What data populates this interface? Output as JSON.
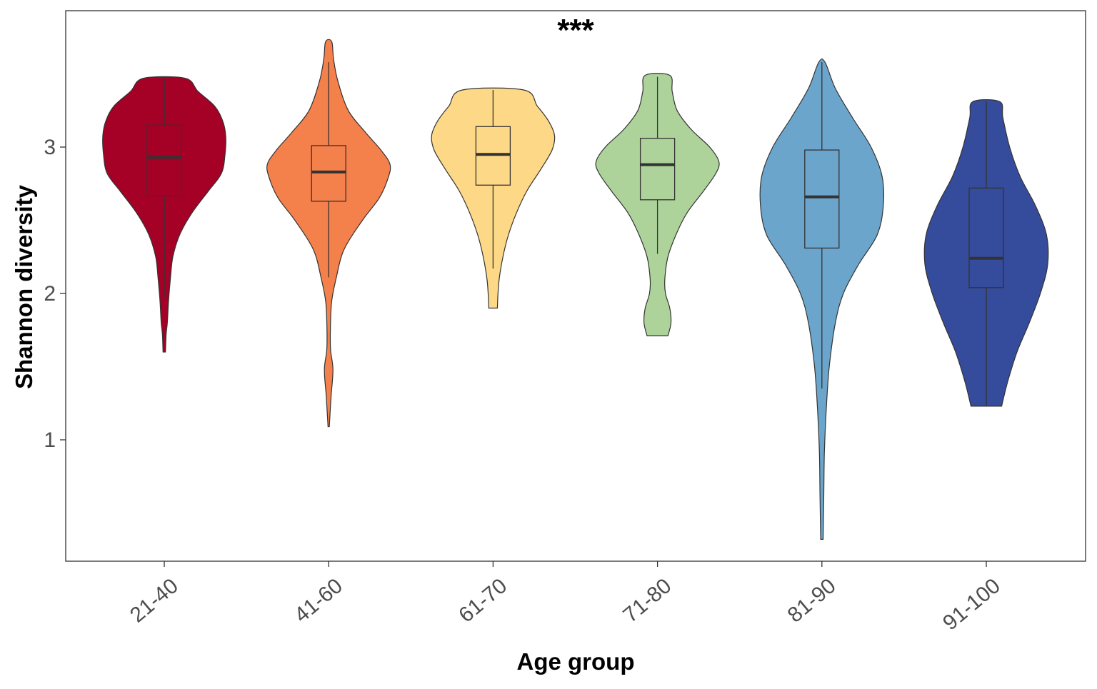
{
  "chart_data": {
    "type": "violin",
    "title": "",
    "xlabel": "Age group",
    "ylabel": "Shannon diversity",
    "annotation": "***",
    "ylim": [
      0.15,
      3.9
    ],
    "yticks": [
      1,
      2,
      3
    ],
    "ytick_labels": [
      "1",
      "2",
      "3"
    ],
    "categories": [
      "21-40",
      "41-60",
      "61-70",
      "71-80",
      "81-90",
      "91-100"
    ],
    "colors": [
      "#A50026",
      "#F4804C",
      "#FDD886",
      "#ADD39B",
      "#6BA5CC",
      "#354B9B"
    ],
    "grid": false,
    "legend": "none",
    "series": [
      {
        "category": "21-40",
        "box": {
          "lower_whisker": 1.97,
          "q1": 2.67,
          "median": 2.93,
          "q3": 3.15,
          "upper_whisker": 3.47
        },
        "violin_min": 1.6,
        "violin_max": 3.47,
        "density": [
          [
            1.6,
            0.02
          ],
          [
            1.72,
            0.03
          ],
          [
            1.8,
            0.05
          ],
          [
            1.95,
            0.07
          ],
          [
            2.1,
            0.1
          ],
          [
            2.25,
            0.14
          ],
          [
            2.4,
            0.25
          ],
          [
            2.55,
            0.45
          ],
          [
            2.7,
            0.72
          ],
          [
            2.82,
            0.93
          ],
          [
            2.95,
            0.99
          ],
          [
            3.08,
            1.0
          ],
          [
            3.18,
            0.95
          ],
          [
            3.28,
            0.82
          ],
          [
            3.38,
            0.55
          ],
          [
            3.47,
            0.34
          ]
        ]
      },
      {
        "category": "41-60",
        "box": {
          "lower_whisker": 2.11,
          "q1": 2.63,
          "median": 2.83,
          "q3": 3.01,
          "upper_whisker": 3.58
        },
        "violin_min": 1.09,
        "violin_max": 3.72,
        "density": [
          [
            1.09,
            0.01
          ],
          [
            1.3,
            0.04
          ],
          [
            1.48,
            0.07
          ],
          [
            1.62,
            0.03
          ],
          [
            1.8,
            0.03
          ],
          [
            1.95,
            0.05
          ],
          [
            2.1,
            0.12
          ],
          [
            2.3,
            0.25
          ],
          [
            2.5,
            0.55
          ],
          [
            2.65,
            0.82
          ],
          [
            2.78,
            0.96
          ],
          [
            2.88,
            1.0
          ],
          [
            2.98,
            0.85
          ],
          [
            3.1,
            0.6
          ],
          [
            3.25,
            0.32
          ],
          [
            3.45,
            0.15
          ],
          [
            3.6,
            0.08
          ],
          [
            3.72,
            0.05
          ]
        ]
      },
      {
        "category": "61-70",
        "box": {
          "lower_whisker": 2.17,
          "q1": 2.74,
          "median": 2.95,
          "q3": 3.14,
          "upper_whisker": 3.39
        },
        "violin_min": 1.9,
        "violin_max": 3.39,
        "density": [
          [
            1.9,
            0.07
          ],
          [
            2.0,
            0.08
          ],
          [
            2.1,
            0.1
          ],
          [
            2.25,
            0.16
          ],
          [
            2.4,
            0.25
          ],
          [
            2.55,
            0.38
          ],
          [
            2.7,
            0.55
          ],
          [
            2.85,
            0.78
          ],
          [
            2.98,
            0.96
          ],
          [
            3.08,
            1.0
          ],
          [
            3.18,
            0.9
          ],
          [
            3.28,
            0.72
          ],
          [
            3.39,
            0.5
          ]
        ]
      },
      {
        "category": "71-80",
        "box": {
          "lower_whisker": 2.27,
          "q1": 2.64,
          "median": 2.88,
          "q3": 3.06,
          "upper_whisker": 3.48
        },
        "violin_min": 1.71,
        "violin_max": 3.49,
        "density": [
          [
            1.71,
            0.17
          ],
          [
            1.8,
            0.22
          ],
          [
            1.9,
            0.2
          ],
          [
            2.0,
            0.13
          ],
          [
            2.1,
            0.12
          ],
          [
            2.25,
            0.17
          ],
          [
            2.4,
            0.3
          ],
          [
            2.55,
            0.48
          ],
          [
            2.7,
            0.75
          ],
          [
            2.82,
            0.95
          ],
          [
            2.9,
            1.0
          ],
          [
            3.0,
            0.85
          ],
          [
            3.12,
            0.55
          ],
          [
            3.25,
            0.32
          ],
          [
            3.38,
            0.24
          ],
          [
            3.49,
            0.2
          ]
        ]
      },
      {
        "category": "81-90",
        "box": {
          "lower_whisker": 1.35,
          "q1": 2.31,
          "median": 2.66,
          "q3": 2.98,
          "upper_whisker": 3.58
        },
        "violin_min": 0.32,
        "violin_max": 3.58,
        "density": [
          [
            0.32,
            0.02
          ],
          [
            0.6,
            0.03
          ],
          [
            0.9,
            0.04
          ],
          [
            1.2,
            0.07
          ],
          [
            1.5,
            0.12
          ],
          [
            1.8,
            0.22
          ],
          [
            2.0,
            0.35
          ],
          [
            2.2,
            0.6
          ],
          [
            2.4,
            0.9
          ],
          [
            2.6,
            1.0
          ],
          [
            2.8,
            0.98
          ],
          [
            3.0,
            0.8
          ],
          [
            3.2,
            0.5
          ],
          [
            3.4,
            0.22
          ],
          [
            3.58,
            0.05
          ]
        ]
      },
      {
        "category": "91-100",
        "box": {
          "lower_whisker": 1.23,
          "q1": 2.04,
          "median": 2.24,
          "q3": 2.72,
          "upper_whisker": 3.31
        },
        "violin_min": 1.23,
        "violin_max": 3.31,
        "density": [
          [
            1.23,
            0.25
          ],
          [
            1.4,
            0.35
          ],
          [
            1.6,
            0.5
          ],
          [
            1.8,
            0.7
          ],
          [
            2.0,
            0.88
          ],
          [
            2.2,
            1.0
          ],
          [
            2.4,
            0.98
          ],
          [
            2.6,
            0.8
          ],
          [
            2.8,
            0.55
          ],
          [
            3.0,
            0.38
          ],
          [
            3.2,
            0.27
          ],
          [
            3.31,
            0.22
          ]
        ]
      }
    ]
  }
}
